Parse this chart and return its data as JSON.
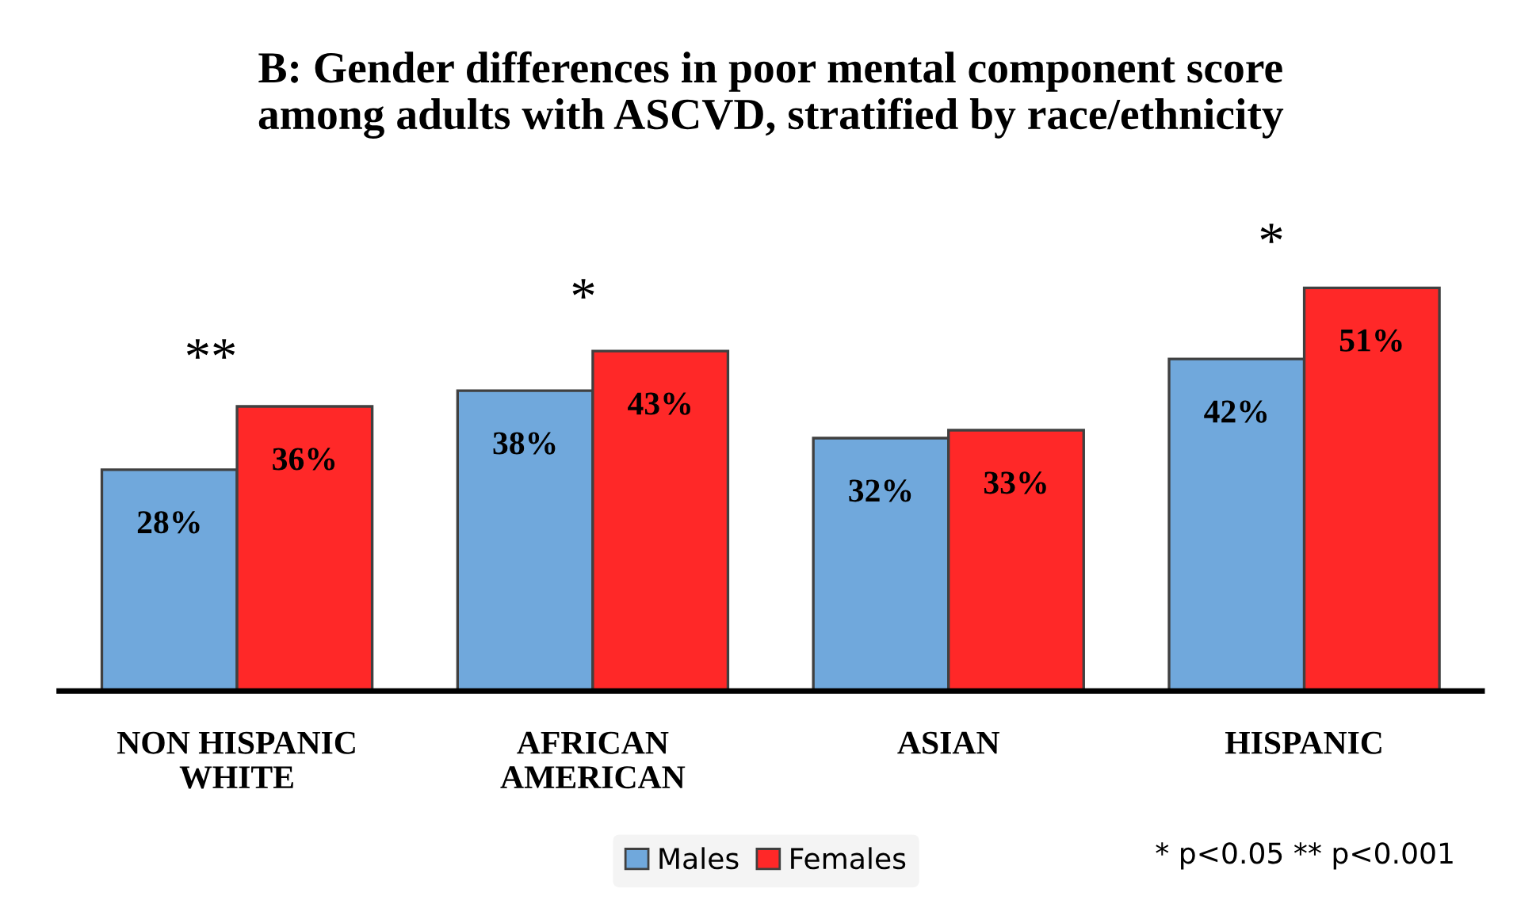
{
  "chart_data": {
    "type": "bar",
    "title": "B: Gender differences in poor mental component score\namong adults with ASCVD, stratified by race/ethnicity",
    "categories": [
      "NON HISPANIC\nWHITE",
      "AFRICAN\nAMERICAN",
      "ASIAN",
      "HISPANIC"
    ],
    "series": [
      {
        "name": "Males",
        "color": "#70a8dc",
        "values": [
          28,
          38,
          32,
          42
        ],
        "value_labels": [
          "28%",
          "38%",
          "32%",
          "42%"
        ]
      },
      {
        "name": "Females",
        "color": "#ff2828",
        "values": [
          36,
          43,
          33,
          51
        ],
        "value_labels": [
          "36%",
          "43%",
          "33%",
          "51%"
        ]
      }
    ],
    "tick_labels": "x",
    "grid": false,
    "legend": "bottom",
    "annotations": [
      "**",
      "*",
      "*",
      "* p<0.05 ** p<0.001"
    ]
  }
}
